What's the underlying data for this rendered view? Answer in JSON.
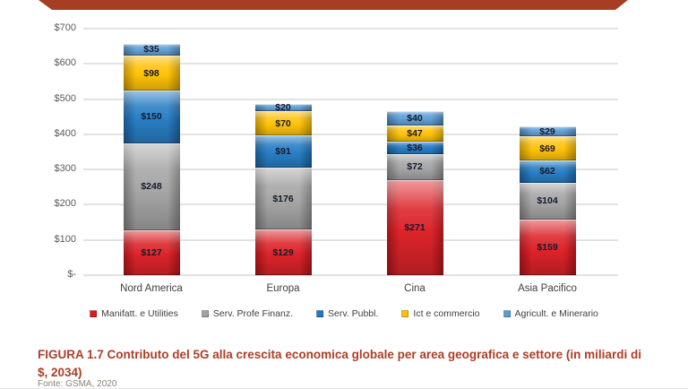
{
  "banner": {
    "color": "#a63e24"
  },
  "chart_data": {
    "type": "bar",
    "stacked": true,
    "categories": [
      "Nord America",
      "Europa",
      "Cina",
      "Asia Pacifico"
    ],
    "series": [
      {
        "name": "Manifatt. e Utilities",
        "color": "#db1b21",
        "values": [
          127,
          129,
          271,
          159
        ]
      },
      {
        "name": "Serv. Profe Finanz.",
        "color": "#a2a2a2",
        "values": [
          248,
          176,
          72,
          104
        ]
      },
      {
        "name": "Serv. Pubbl.",
        "color": "#2079c3",
        "values": [
          150,
          91,
          36,
          62
        ]
      },
      {
        "name": "Ict e commercio",
        "color": "#ffc000",
        "values": [
          98,
          70,
          47,
          69
        ]
      },
      {
        "name": "Agricult. e Minerario",
        "color": "#5b9bd5",
        "values": [
          35,
          20,
          40,
          29
        ]
      }
    ],
    "totals": [
      658,
      486,
      466,
      423
    ],
    "y_ticks": [
      "$700",
      "$600",
      "$500",
      "$400",
      "$300",
      "$200",
      "$100",
      "$-"
    ],
    "ylim": [
      0,
      700
    ],
    "y_step": 100,
    "value_prefix": "$",
    "grid": true,
    "legend_position": "bottom"
  },
  "caption": {
    "text": "FIGURA 1.7 Contributo del 5G alla crescita economica globale per area geografica e settore (in miliardi di $, 2034)",
    "color": "#ac3e27"
  },
  "source": {
    "text": "Fonte: GSMA, 2020"
  }
}
